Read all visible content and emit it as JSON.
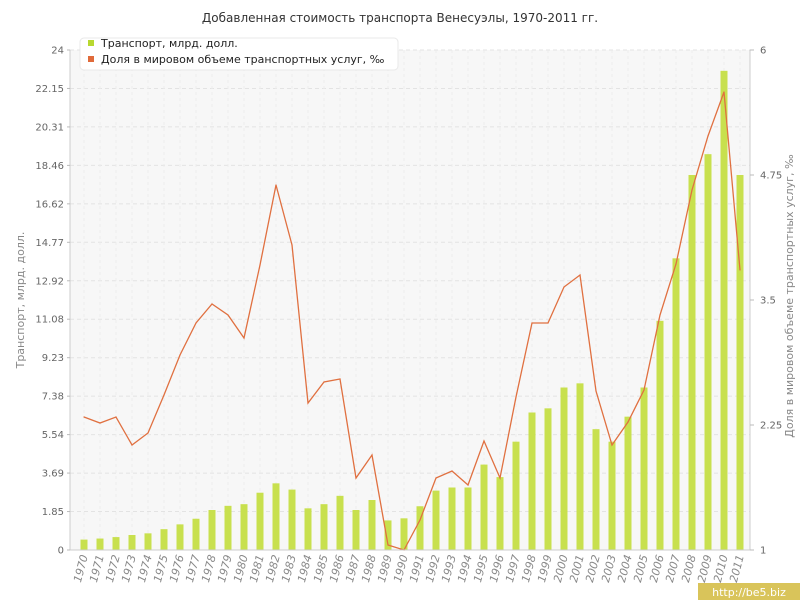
{
  "chart_data": {
    "type": "bar",
    "title": "Добавленная стоимость транспорта Венесуэлы, 1970-2011 гг.",
    "categories": [
      "1970",
      "1971",
      "1972",
      "1973",
      "1974",
      "1975",
      "1976",
      "1977",
      "1978",
      "1979",
      "1980",
      "1981",
      "1982",
      "1983",
      "1984",
      "1985",
      "1986",
      "1987",
      "1988",
      "1989",
      "1990",
      "1991",
      "1992",
      "1993",
      "1994",
      "1995",
      "1996",
      "1997",
      "1998",
      "1999",
      "2000",
      "2001",
      "2002",
      "2003",
      "2004",
      "2005",
      "2006",
      "2007",
      "2008",
      "2009",
      "2010",
      "2011"
    ],
    "series": [
      {
        "name": "Транспорт, млрд. долл.",
        "kind": "bar",
        "axis": "left",
        "color": "#c8e04e",
        "values": [
          0.5,
          0.55,
          0.62,
          0.72,
          0.8,
          1.0,
          1.23,
          1.5,
          1.92,
          2.12,
          2.2,
          2.75,
          3.2,
          2.9,
          2.0,
          2.2,
          2.6,
          1.92,
          2.4,
          1.42,
          1.52,
          2.1,
          2.85,
          3.0,
          3.0,
          4.1,
          3.5,
          5.2,
          6.6,
          6.8,
          7.8,
          8.0,
          5.8,
          5.2,
          6.4,
          7.8,
          11.0,
          14.0,
          18.0,
          19.0,
          23.0,
          18.0
        ]
      },
      {
        "name": "Доля в мировом объеме транспортных услуг, ‰",
        "kind": "line",
        "axis": "right",
        "color": "#e07040",
        "values": [
          2.33,
          2.27,
          2.33,
          2.05,
          2.17,
          2.55,
          2.95,
          3.27,
          3.46,
          3.35,
          3.12,
          3.85,
          4.65,
          4.05,
          2.47,
          2.68,
          2.71,
          1.72,
          1.95,
          1.05,
          1.0,
          1.3,
          1.72,
          1.79,
          1.65,
          2.09,
          1.72,
          2.53,
          3.27,
          3.27,
          3.63,
          3.75,
          2.59,
          2.05,
          2.28,
          2.6,
          3.35,
          3.86,
          4.6,
          5.14,
          5.58,
          3.8
        ]
      }
    ],
    "y_left": {
      "label": "Транспорт, млрд. долл.",
      "range": [
        0,
        24
      ],
      "ticks": [
        "0",
        "1.85",
        "3.69",
        "5.54",
        "7.38",
        "9.23",
        "11.08",
        "12.92",
        "14.77",
        "16.62",
        "18.46",
        "20.31",
        "22.15",
        "24"
      ]
    },
    "y_right": {
      "label": "Доля в мировом объеме транспортных услуг, ‰",
      "range": [
        1,
        6
      ],
      "ticks": [
        "1",
        "2.25",
        "3.5",
        "4.75",
        "6"
      ]
    },
    "grid": true,
    "legend_position": "top-left"
  },
  "watermark": "http://be5.biz"
}
